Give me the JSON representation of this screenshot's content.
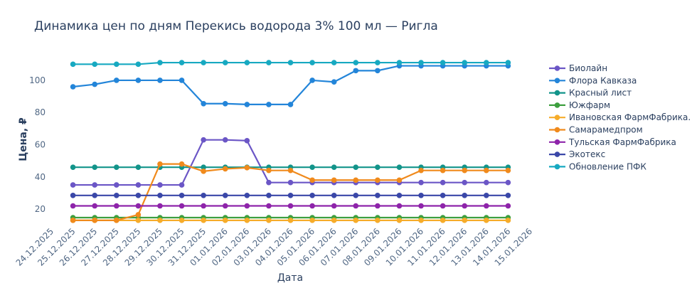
{
  "chart_data": {
    "type": "line",
    "title": "Динамика цен по дням Перекись водорода 3% 100 мл — Ригла",
    "xlabel": "Дата",
    "ylabel": "Цена, ₽",
    "x_tick_labels": [
      "24.12.2025",
      "25.12.2025",
      "26.12.2025",
      "27.12.2025",
      "28.12.2025",
      "29.12.2025",
      "30.12.2025",
      "31.12.2025",
      "01.01.2026",
      "02.01.2026",
      "03.01.2026",
      "04.01.2026",
      "05.01.2026",
      "06.01.2026",
      "07.01.2026",
      "08.01.2026",
      "09.01.2026",
      "10.01.2026",
      "11.01.2026",
      "12.01.2026",
      "13.01.2026",
      "14.01.2026",
      "15.01.2026"
    ],
    "x": [
      "25.12.2025",
      "26.12.2025",
      "27.12.2025",
      "28.12.2025",
      "29.12.2025",
      "30.12.2025",
      "31.12.2025",
      "01.01.2026",
      "02.01.2026",
      "03.01.2026",
      "04.01.2026",
      "05.01.2026",
      "06.01.2026",
      "07.01.2026",
      "08.01.2026",
      "09.01.2026",
      "10.01.2026",
      "11.01.2026",
      "12.01.2026",
      "13.01.2026",
      "14.01.2026"
    ],
    "xlim": [
      "24.12.2025",
      "15.01.2026"
    ],
    "y_ticks": [
      20,
      40,
      60,
      80,
      100
    ],
    "ylim": [
      11,
      115
    ],
    "grid": false,
    "legend_position": "right",
    "series": [
      {
        "name": "Биолайн",
        "color": "#6b56c6",
        "values": [
          35,
          35,
          35,
          35,
          35,
          35,
          63,
          63,
          62.5,
          36.5,
          36.5,
          36.5,
          36.5,
          36.5,
          36.5,
          36.5,
          36.5,
          36.5,
          36.5,
          36.5,
          36.5
        ]
      },
      {
        "name": "Флора Кавказа",
        "color": "#2385d9",
        "values": [
          96,
          97.5,
          100,
          100,
          100,
          100,
          85.5,
          85.5,
          85,
          85,
          85,
          100,
          99,
          106,
          106,
          109,
          109,
          109,
          109,
          109,
          109
        ]
      },
      {
        "name": "Красный лист",
        "color": "#12948a",
        "values": [
          46,
          46,
          46,
          46,
          46,
          46,
          46,
          46,
          46,
          46,
          46,
          46,
          46,
          46,
          46,
          46,
          46,
          46,
          46,
          46,
          46
        ]
      },
      {
        "name": "Южфарм",
        "color": "#3d9f3f",
        "values": [
          14.7,
          14.7,
          14.7,
          14.7,
          14.7,
          14.7,
          14.7,
          14.7,
          14.7,
          14.7,
          14.7,
          14.7,
          14.7,
          14.7,
          14.7,
          14.7,
          14.7,
          14.7,
          14.7,
          14.7,
          14.7
        ]
      },
      {
        "name": "Ивановская ФармФабрика.",
        "color": "#f6ac2a",
        "values": [
          13,
          13,
          13,
          13,
          13,
          13,
          13,
          13,
          13,
          13,
          13,
          13,
          13,
          13,
          13,
          13,
          13,
          13,
          13,
          13,
          13
        ]
      },
      {
        "name": "Самарамедпром",
        "color": "#f08a1c",
        "values": [
          13,
          13,
          13,
          16.5,
          48,
          48,
          43.5,
          45,
          45.7,
          44,
          44,
          38,
          38,
          38,
          38,
          38,
          44,
          44,
          44,
          44,
          44
        ]
      },
      {
        "name": "Тульская ФармФабрика",
        "color": "#8e24aa",
        "values": [
          22,
          22,
          22,
          22,
          22,
          22,
          22,
          22,
          22,
          22,
          22,
          22,
          22,
          22,
          22,
          22,
          22,
          22,
          22,
          22,
          22
        ]
      },
      {
        "name": "Экотекс",
        "color": "#3a47a8",
        "values": [
          28.5,
          28.5,
          28.5,
          28.5,
          28.5,
          28.5,
          28.5,
          28.5,
          28.5,
          28.5,
          28.5,
          28.5,
          28.5,
          28.5,
          28.5,
          28.5,
          28.5,
          28.5,
          28.5,
          28.5,
          28.5
        ]
      },
      {
        "name": "Обновление ПФК",
        "color": "#17a9c1",
        "values": [
          110,
          110,
          110,
          110,
          111,
          111,
          111,
          111,
          111,
          111,
          111,
          111,
          111,
          111,
          111,
          111,
          111,
          111,
          111,
          111,
          111
        ]
      }
    ]
  }
}
